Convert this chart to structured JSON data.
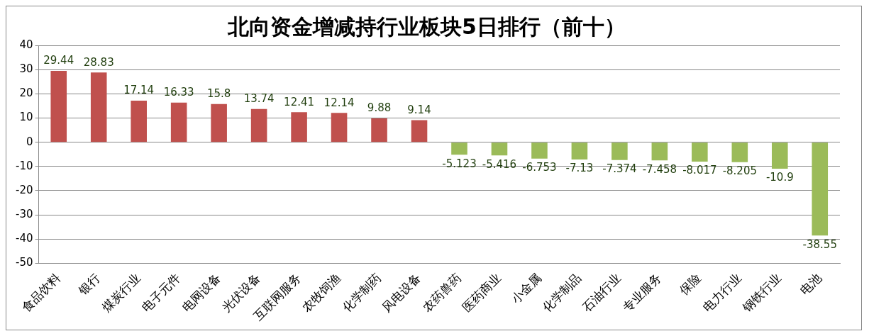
{
  "chart_data": {
    "type": "bar",
    "title": "北向资金增减持行业板块5日排行（前十）",
    "categories": [
      "食品饮料",
      "银行",
      "煤炭行业",
      "电子元件",
      "电网设备",
      "光伏设备",
      "互联网服务",
      "农牧饲渔",
      "化学制药",
      "风电设备",
      "农药兽药",
      "医药商业",
      "小金属",
      "化学制品",
      "石油行业",
      "专业服务",
      "保险",
      "电力行业",
      "钢铁行业",
      "电池"
    ],
    "values": [
      29.44,
      28.83,
      17.14,
      16.33,
      15.8,
      13.74,
      12.41,
      12.14,
      9.88,
      9.14,
      -5.123,
      -5.416,
      -6.753,
      -7.13,
      -7.374,
      -7.458,
      -8.017,
      -8.205,
      -10.9,
      -38.55
    ],
    "colors": [
      "#c0504d",
      "#c0504d",
      "#c0504d",
      "#c0504d",
      "#c0504d",
      "#c0504d",
      "#c0504d",
      "#c0504d",
      "#c0504d",
      "#c0504d",
      "#9bbb59",
      "#9bbb59",
      "#9bbb59",
      "#9bbb59",
      "#9bbb59",
      "#9bbb59",
      "#9bbb59",
      "#9bbb59",
      "#9bbb59",
      "#9bbb59"
    ],
    "ylim": [
      -50,
      40
    ],
    "yticks": [
      -50,
      -40,
      -30,
      -20,
      -10,
      0,
      10,
      20,
      30,
      40
    ],
    "grid": "y",
    "data_labels": true,
    "legend": false
  }
}
